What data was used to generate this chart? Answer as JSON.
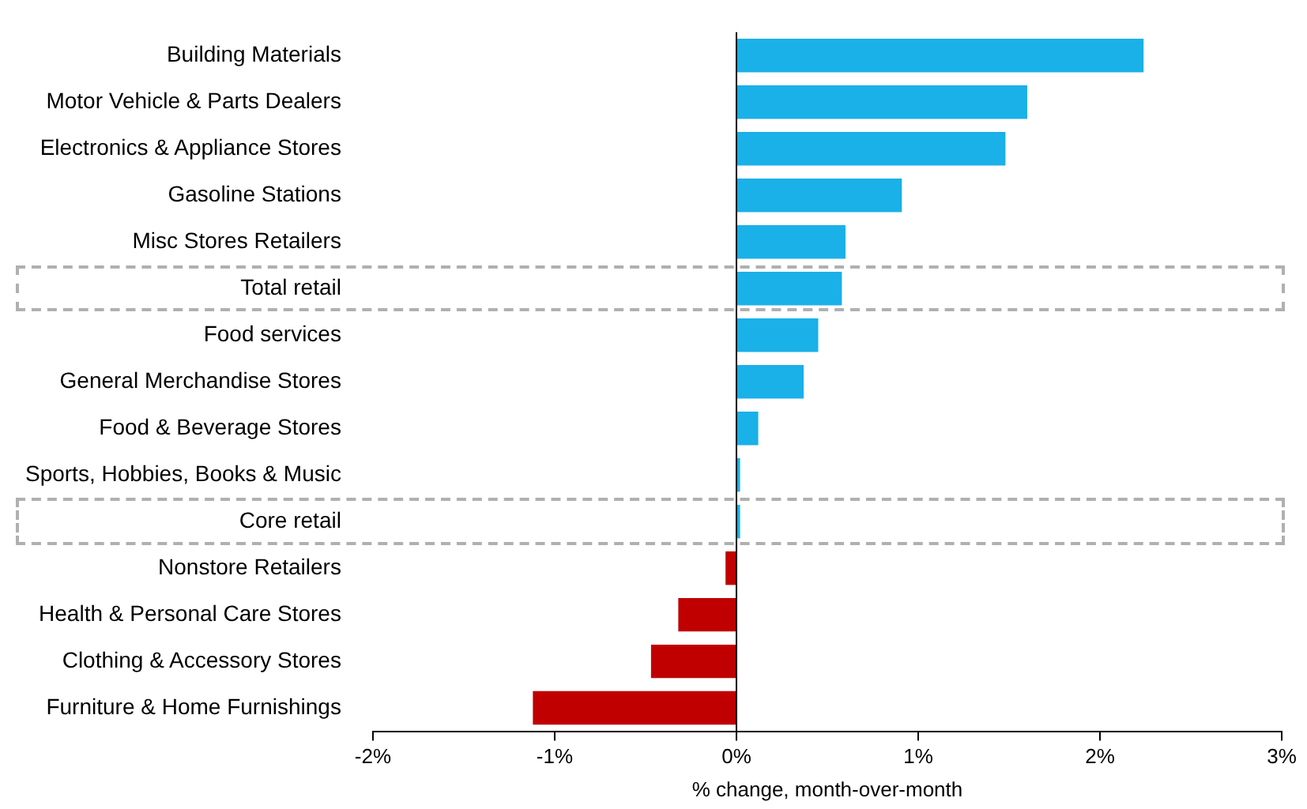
{
  "chart_data": {
    "type": "bar",
    "orientation": "horizontal",
    "xlabel": "% change, month-over-month",
    "categories": [
      "Building Materials",
      "Motor Vehicle & Parts Dealers",
      "Electronics & Appliance Stores",
      "Gasoline Stations",
      "Misc Stores Retailers",
      "Total retail",
      "Food services",
      "General Merchandise Stores",
      "Food & Beverage Stores",
      "Sports, Hobbies, Books & Music",
      "Core retail",
      "Nonstore Retailers",
      "Health & Personal Care Stores",
      "Clothing & Accessory Stores",
      "Furniture & Home Furnishings"
    ],
    "values": [
      2.24,
      1.6,
      1.48,
      0.91,
      0.6,
      0.58,
      0.45,
      0.37,
      0.12,
      0.02,
      0.02,
      -0.06,
      -0.32,
      -0.47,
      -1.12
    ],
    "colors": [
      "#1ab0e8",
      "#1ab0e8",
      "#1ab0e8",
      "#1ab0e8",
      "#1ab0e8",
      "#1ab0e8",
      "#1ab0e8",
      "#1ab0e8",
      "#1ab0e8",
      "#1ab0e8",
      "#1ab0e8",
      "#c00000",
      "#c00000",
      "#c00000",
      "#c00000"
    ],
    "xlim": [
      -2,
      3
    ],
    "xticks": [
      {
        "value": -2,
        "label": "-2%"
      },
      {
        "value": -1,
        "label": "-1%"
      },
      {
        "value": 0,
        "label": "0%"
      },
      {
        "value": 1,
        "label": "1%"
      },
      {
        "value": 2,
        "label": "2%"
      },
      {
        "value": 3,
        "label": "3%"
      }
    ],
    "ref_lines": [
      {
        "axis": "x",
        "value": 0,
        "color": "#000000"
      }
    ],
    "grid": false,
    "legend": false
  }
}
